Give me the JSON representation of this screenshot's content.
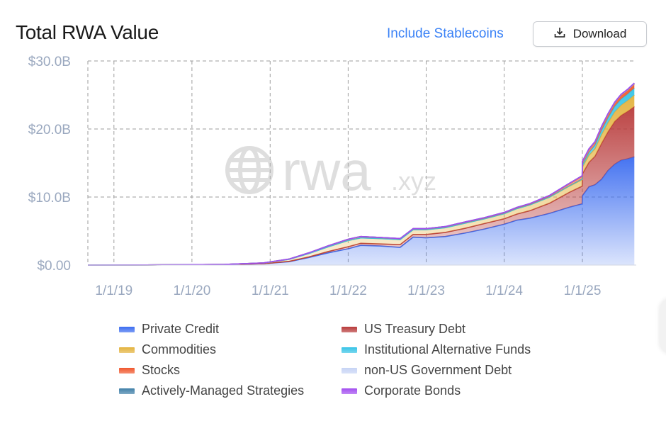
{
  "header": {
    "title": "Total RWA Value",
    "toggle_label": "Include Stablecoins",
    "download_label": "Download"
  },
  "watermark": {
    "brand": "rwa",
    "suffix": ".xyz"
  },
  "chart_data": {
    "type": "area",
    "stacked": true,
    "grid": true,
    "legend_position": "bottom",
    "title": "",
    "xlabel": "",
    "ylabel": "",
    "x_tick_labels": [
      "1/1/19",
      "1/1/20",
      "1/1/21",
      "1/1/22",
      "1/1/23",
      "1/1/24",
      "1/1/25"
    ],
    "y_tick_labels": [
      "$0.00",
      "$10.0B",
      "$20.0B",
      "$30.0B"
    ],
    "y_ticks": [
      0,
      10,
      20,
      30
    ],
    "ylim": [
      0,
      30
    ],
    "y_unit": "billions USD",
    "xlim": [
      "2018-09-01",
      "2025-09-10"
    ],
    "x": [
      "2018-09-01",
      "2019-06-01",
      "2020-06-01",
      "2020-12-01",
      "2021-04-01",
      "2021-07-01",
      "2021-10-01",
      "2022-01-01",
      "2022-03-01",
      "2022-06-01",
      "2022-09-01",
      "2022-11-01",
      "2023-01-01",
      "2023-04-01",
      "2023-07-01",
      "2023-10-01",
      "2024-01-01",
      "2024-03-01",
      "2024-05-01",
      "2024-08-01",
      "2024-11-01",
      "2024-12-31",
      "2025-01-01",
      "2025-02-01",
      "2025-03-01",
      "2025-04-01",
      "2025-05-01",
      "2025-06-01",
      "2025-07-01",
      "2025-08-01",
      "2025-09-01"
    ],
    "series": [
      {
        "name": "Private Credit",
        "color": "#3b6cf0",
        "values": [
          0,
          0.02,
          0.08,
          0.2,
          0.5,
          1.1,
          1.8,
          2.4,
          2.9,
          2.8,
          2.6,
          4.1,
          4.0,
          4.2,
          4.7,
          5.3,
          6.0,
          6.6,
          6.9,
          7.6,
          8.5,
          9.0,
          10.2,
          11.5,
          11.8,
          12.6,
          13.9,
          14.8,
          15.4,
          15.6,
          15.9
        ]
      },
      {
        "name": "US Treasury Debt",
        "color": "#b83a3a",
        "values": [
          0,
          0,
          0,
          0,
          0.05,
          0.1,
          0.2,
          0.3,
          0.3,
          0.3,
          0.4,
          0.4,
          0.5,
          0.6,
          0.7,
          0.8,
          0.8,
          0.9,
          1.1,
          1.5,
          2.2,
          2.6,
          3.2,
          3.6,
          4.2,
          5.3,
          5.7,
          6.3,
          6.6,
          7.0,
          7.4
        ]
      },
      {
        "name": "Commodities",
        "color": "#e3b23c",
        "values": [
          0,
          0,
          0.01,
          0.1,
          0.3,
          0.5,
          0.7,
          0.9,
          0.8,
          0.8,
          0.75,
          0.7,
          0.7,
          0.7,
          0.75,
          0.7,
          0.75,
          0.8,
          0.85,
          0.9,
          0.9,
          0.95,
          1.0,
          1.05,
          1.1,
          1.3,
          1.35,
          1.4,
          1.5,
          1.6,
          1.7
        ]
      },
      {
        "name": "Institutional Alternative Funds",
        "color": "#35c3e6",
        "values": [
          0,
          0,
          0,
          0,
          0,
          0,
          0,
          0,
          0,
          0,
          0,
          0,
          0,
          0,
          0,
          0,
          0,
          0,
          0,
          0,
          0.05,
          0.1,
          0.3,
          0.4,
          0.5,
          0.6,
          0.7,
          0.8,
          0.9,
          0.95,
          1.0
        ]
      },
      {
        "name": "Stocks",
        "color": "#f0572c",
        "values": [
          0,
          0,
          0,
          0.02,
          0.05,
          0.1,
          0.15,
          0.2,
          0.2,
          0.15,
          0.15,
          0.15,
          0.15,
          0.15,
          0.15,
          0.15,
          0.15,
          0.15,
          0.15,
          0.2,
          0.3,
          0.4,
          0.45,
          0.45,
          0.45,
          0.5,
          0.5,
          0.5,
          0.55,
          0.55,
          0.6
        ]
      },
      {
        "name": "non-US Government Debt",
        "color": "#c6d3f5",
        "values": [
          0,
          0,
          0,
          0,
          0,
          0,
          0,
          0,
          0,
          0,
          0,
          0,
          0,
          0.02,
          0.03,
          0.03,
          0.04,
          0.04,
          0.05,
          0.05,
          0.05,
          0.06,
          0.06,
          0.06,
          0.06,
          0.06,
          0.06,
          0.07,
          0.07,
          0.07,
          0.07
        ]
      },
      {
        "name": "Actively-Managed Strategies",
        "color": "#3f7fa8",
        "values": [
          0,
          0,
          0,
          0,
          0,
          0,
          0,
          0,
          0,
          0,
          0,
          0,
          0,
          0,
          0,
          0,
          0,
          0,
          0,
          0,
          0.02,
          0.03,
          0.03,
          0.03,
          0.04,
          0.04,
          0.05,
          0.05,
          0.05,
          0.05,
          0.06
        ]
      },
      {
        "name": "Corporate Bonds",
        "color": "#a24df0",
        "values": [
          0,
          0,
          0,
          0,
          0,
          0,
          0,
          0,
          0,
          0,
          0,
          0,
          0,
          0,
          0,
          0,
          0,
          0,
          0,
          0,
          0,
          0,
          0.02,
          0.02,
          0.02,
          0.02,
          0.02,
          0.03,
          0.03,
          0.03,
          0.03
        ]
      }
    ],
    "legend_order": [
      "Private Credit",
      "US Treasury Debt",
      "Commodities",
      "Institutional Alternative Funds",
      "Stocks",
      "non-US Government Debt",
      "Actively-Managed Strategies",
      "Corporate Bonds"
    ]
  }
}
